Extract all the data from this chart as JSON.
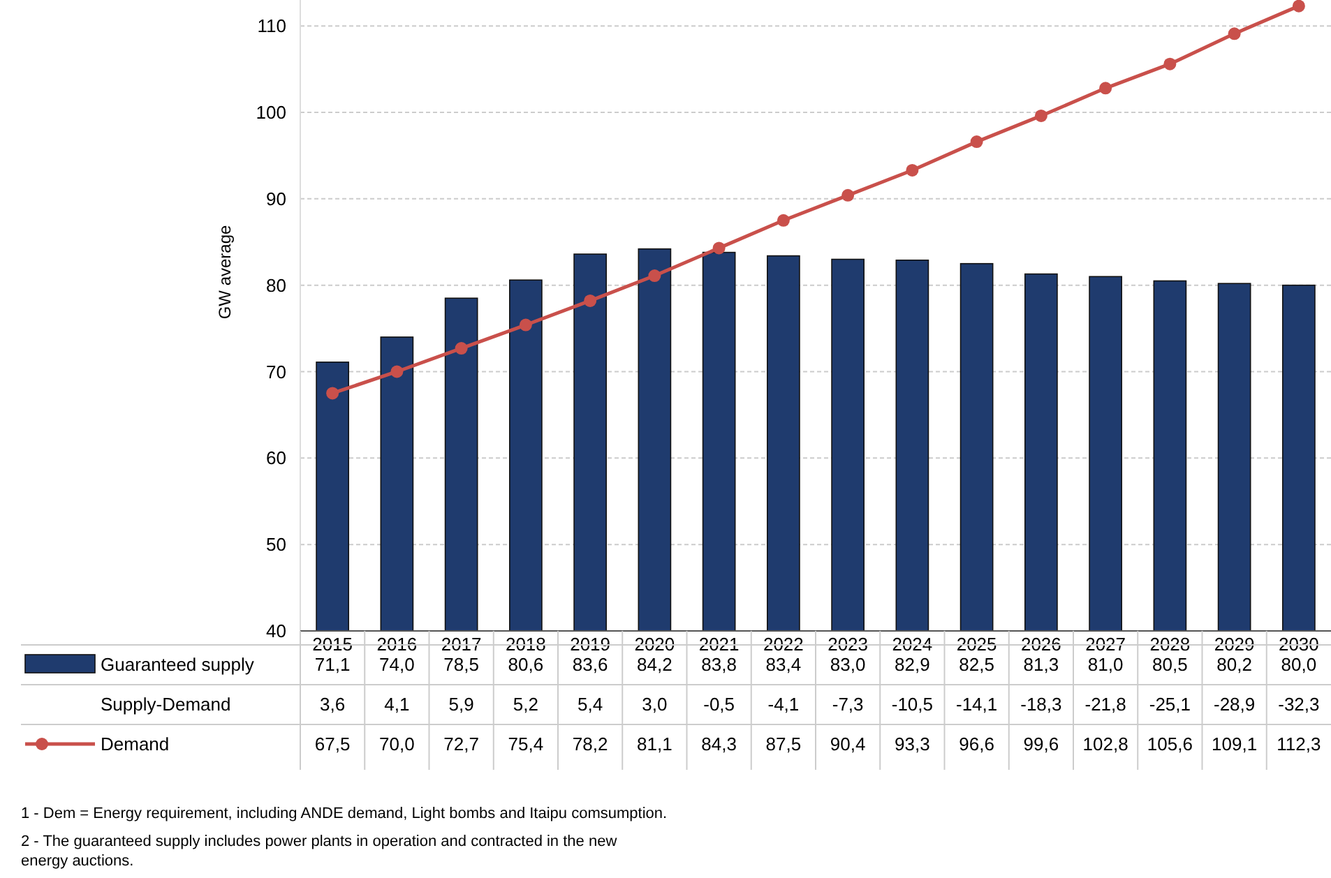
{
  "chart_data": {
    "type": "bar",
    "ylabel": "GW average",
    "categories": [
      "2015",
      "2016",
      "2017",
      "2018",
      "2019",
      "2020",
      "2021",
      "2022",
      "2023",
      "2024",
      "2025",
      "2026",
      "2027",
      "2028",
      "2029",
      "2030"
    ],
    "series": [
      {
        "name": "Guaranteed supply",
        "color": "#1f3b6e",
        "values": [
          71.1,
          74.0,
          78.5,
          80.6,
          83.6,
          84.2,
          83.8,
          83.4,
          83.0,
          82.9,
          82.5,
          81.3,
          81.0,
          80.5,
          80.2,
          80.0
        ],
        "value_labels": [
          "71,1",
          "74,0",
          "78,5",
          "80,6",
          "83,6",
          "84,2",
          "83,8",
          "83,4",
          "83,0",
          "82,9",
          "82,5",
          "81,3",
          "81,0",
          "80,5",
          "80,2",
          "80,0"
        ]
      },
      {
        "name": "Supply-Demand",
        "type": "other",
        "values": [
          null,
          null,
          null,
          null,
          null,
          null,
          null,
          null,
          null,
          null,
          null,
          null,
          null,
          null,
          null,
          null
        ],
        "value_labels": [
          "3,6",
          "4,1",
          "5,9",
          "5,2",
          "5,4",
          "3,0",
          "-0,5",
          "-4,1",
          "-7,3",
          "-10,5",
          "-14,1",
          "-18,3",
          "-21,8",
          "-25,1",
          "-28,9",
          "-32,3"
        ]
      },
      {
        "name": "Demand",
        "type": "line",
        "color": "#c9504b",
        "marker": "circle",
        "values": [
          67.5,
          70.0,
          72.7,
          75.4,
          78.2,
          81.1,
          84.3,
          87.5,
          90.4,
          93.3,
          96.6,
          99.6,
          102.8,
          105.6,
          109.1,
          112.3
        ],
        "value_labels": [
          "67,5",
          "70,0",
          "72,7",
          "75,4",
          "78,2",
          "81,1",
          "84,3",
          "87,5",
          "90,4",
          "93,3",
          "96,6",
          "99,6",
          "102,8",
          "105,6",
          "109,1",
          "112,3"
        ]
      }
    ],
    "ylim": [
      40,
      113
    ],
    "yticks": [
      40,
      50,
      60,
      70,
      80,
      90,
      100,
      110
    ],
    "grid": "y",
    "legend": "bottom",
    "annotations": [
      "1 - Dem = Energy requirement, including ANDE demand, Light bombs and Itaipu comsumption.",
      "2 - The guaranteed supply includes power plants in operation  and contracted in the new energy auctions."
    ]
  }
}
